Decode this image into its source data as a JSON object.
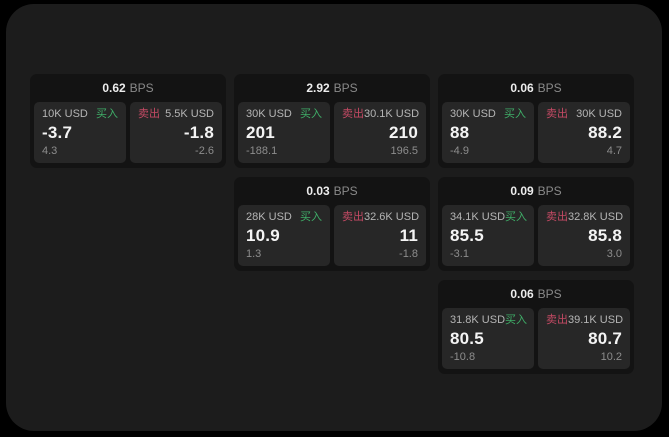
{
  "labels": {
    "buy": "买入",
    "sell": "卖出",
    "bps": "BPS"
  },
  "colors": {
    "buy_green": "#3fae68",
    "sell_red": "#c44a64",
    "panel_bg": "#1c1c1c",
    "card_bg": "#131313",
    "tile_bg": "#272727"
  },
  "cards": [
    {
      "bps": "0.62",
      "buy": {
        "size": "10K USD",
        "value": "-3.7",
        "delta": "4.3"
      },
      "sell": {
        "size": "5.5K USD",
        "value": "-1.8",
        "delta": "-2.6"
      }
    },
    {
      "bps": "2.92",
      "buy": {
        "size": "30K USD",
        "value": "201",
        "delta": "-188.1"
      },
      "sell": {
        "size": "30.1K USD",
        "value": "210",
        "delta": "196.5"
      }
    },
    {
      "bps": "0.06",
      "buy": {
        "size": "30K USD",
        "value": "88",
        "delta": "-4.9"
      },
      "sell": {
        "size": "30K USD",
        "value": "88.2",
        "delta": "4.7"
      }
    },
    {
      "bps": "0.03",
      "buy": {
        "size": "28K USD",
        "value": "10.9",
        "delta": "1.3"
      },
      "sell": {
        "size": "32.6K USD",
        "value": "11",
        "delta": "-1.8"
      }
    },
    {
      "bps": "0.09",
      "buy": {
        "size": "34.1K USD",
        "value": "85.5",
        "delta": "-3.1"
      },
      "sell": {
        "size": "32.8K USD",
        "value": "85.8",
        "delta": "3.0"
      }
    },
    {
      "bps": "0.06",
      "buy": {
        "size": "31.8K USD",
        "value": "80.5",
        "delta": "-10.8"
      },
      "sell": {
        "size": "39.1K USD",
        "value": "80.7",
        "delta": "10.2"
      }
    }
  ]
}
